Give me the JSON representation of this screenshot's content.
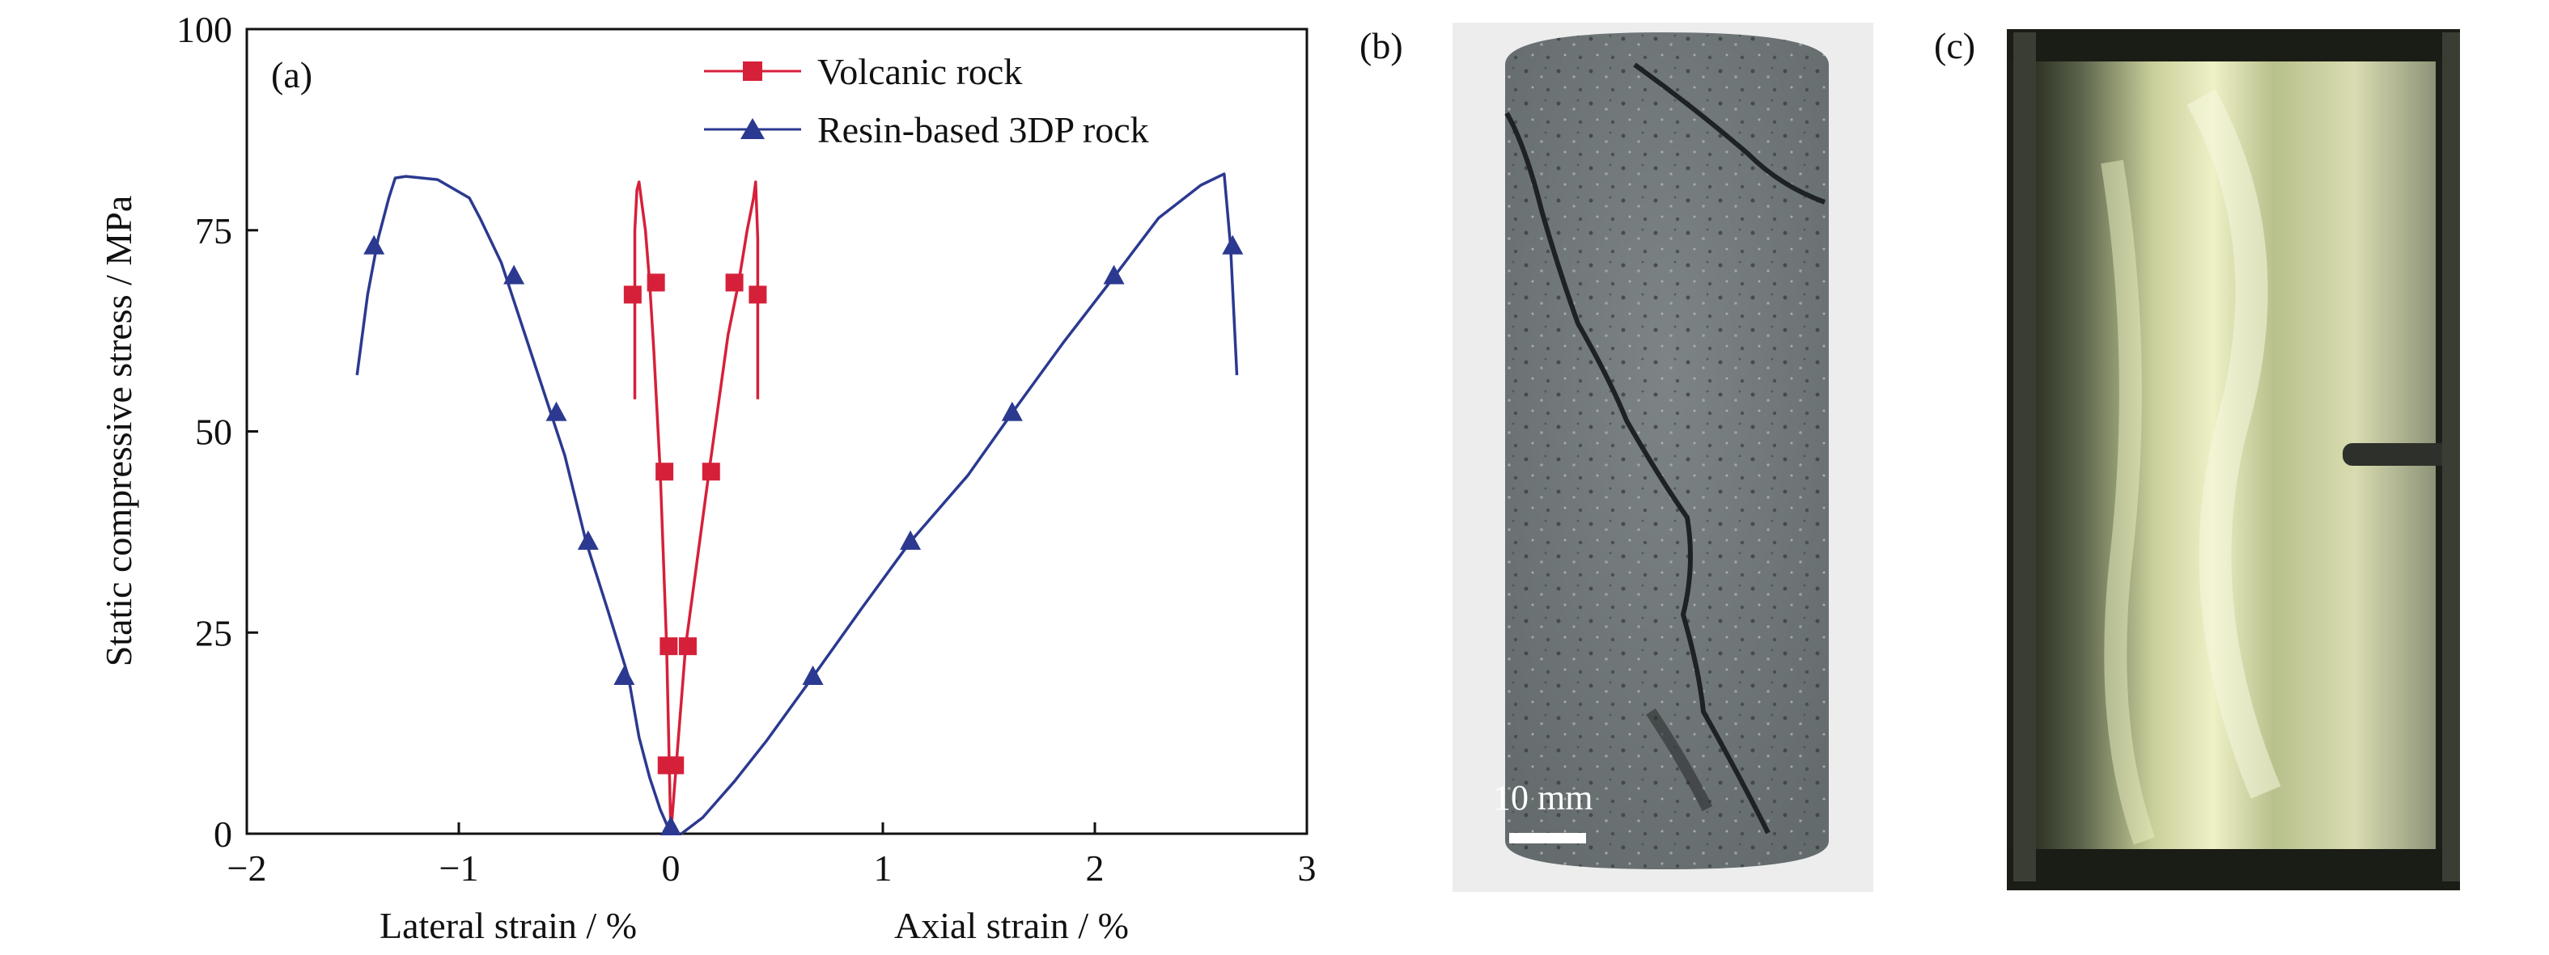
{
  "chart_data": {
    "type": "line",
    "panel_label": "(a)",
    "xlim": [
      -2,
      3
    ],
    "ylim": [
      0,
      100
    ],
    "xticks": [
      "−2",
      "−1",
      "0",
      "1",
      "2",
      "3"
    ],
    "yticks": [
      "0",
      "25",
      "50",
      "75",
      "100"
    ],
    "xlabel_left": "Lateral strain / %",
    "xlabel_right": "Axial strain / %",
    "ylabel": "Static compressive stress / MPa",
    "legend_position": "top-right",
    "series": [
      {
        "name": "Volcanic rock",
        "color": "#d6203a",
        "marker": "square",
        "branches": [
          {
            "x": [
              0,
              -0.02,
              -0.05,
              -0.08,
              -0.1,
              -0.12,
              -0.14,
              -0.15,
              -0.16,
              -0.17,
              -0.17
            ],
            "y": [
              0,
              23.3,
              45,
              60,
              68.5,
              75,
              79,
              81,
              80,
              75,
              54
            ]
          },
          {
            "x": [
              0,
              0.07,
              0.18,
              0.27,
              0.32,
              0.36,
              0.39,
              0.4,
              0.41,
              0.41
            ],
            "y": [
              0,
              23.3,
              45,
              62,
              68.5,
              75,
              79,
              81,
              74,
              54
            ]
          }
        ],
        "markers": [
          {
            "x": -0.02,
            "y": 8.5
          },
          {
            "x": -0.01,
            "y": 23.3
          },
          {
            "x": -0.03,
            "y": 45
          },
          {
            "x": -0.07,
            "y": 68.5
          },
          {
            "x": -0.18,
            "y": 67
          },
          {
            "x": 0.02,
            "y": 8.5
          },
          {
            "x": 0.08,
            "y": 23.3
          },
          {
            "x": 0.19,
            "y": 45
          },
          {
            "x": 0.3,
            "y": 68.5
          },
          {
            "x": 0.41,
            "y": 67
          }
        ]
      },
      {
        "name": "Resin-based 3DP rock",
        "color": "#2b3990",
        "marker": "triangle",
        "branches": [
          {
            "x": [
              0,
              -0.05,
              -0.1,
              -0.15,
              -0.2,
              -0.3,
              -0.4,
              -0.5,
              -0.6,
              -0.7,
              -0.8,
              -0.9,
              -0.95,
              -1.1,
              -1.25,
              -1.3,
              -1.33,
              -1.38,
              -1.43,
              -1.48
            ],
            "y": [
              0,
              3,
              7,
              12,
              19.5,
              28,
              36.3,
              47,
              55,
              63,
              71,
              76.5,
              79,
              81.3,
              81.7,
              81.5,
              79,
              74,
              67,
              57
            ]
          },
          {
            "x": [
              0.05,
              0.15,
              0.3,
              0.45,
              0.67,
              0.9,
              1.13,
              1.4,
              1.61,
              1.85,
              2.09,
              2.3,
              2.5,
              2.61,
              2.64,
              2.67
            ],
            "y": [
              0,
              2,
              6.5,
              11.5,
              19.5,
              28,
              36.3,
              44.5,
              52.3,
              61,
              69.2,
              76.5,
              80.6,
              82,
              73,
              57
            ]
          }
        ],
        "markers": [
          {
            "x": 0,
            "y": 0.8
          },
          {
            "x": -0.22,
            "y": 19.5
          },
          {
            "x": -0.39,
            "y": 36.3
          },
          {
            "x": -0.54,
            "y": 52.3
          },
          {
            "x": -0.74,
            "y": 69.3
          },
          {
            "x": -1.4,
            "y": 73
          },
          {
            "x": 0.67,
            "y": 19.5
          },
          {
            "x": 1.13,
            "y": 36.3
          },
          {
            "x": 1.61,
            "y": 52.3
          },
          {
            "x": 2.09,
            "y": 69.3
          },
          {
            "x": 2.65,
            "y": 73
          }
        ]
      }
    ]
  },
  "photo_b": {
    "panel_label": "(b)",
    "scale_text": "10 mm"
  },
  "photo_c": {
    "panel_label": "(c)"
  }
}
